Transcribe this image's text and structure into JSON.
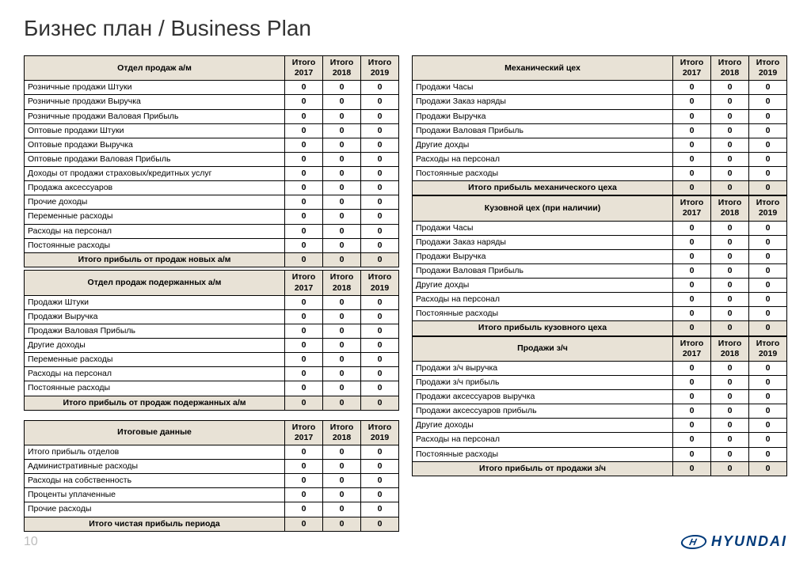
{
  "title": "Бизнес план / Business Plan",
  "page_number": "10",
  "logo_text": "HYUNDAI",
  "year_headers": [
    "Итого 2017",
    "Итого 2018",
    "Итого 2019"
  ],
  "colors": {
    "header_bg": "#e8e2d6",
    "border": "#000000",
    "text": "#000000",
    "title": "#333333",
    "page_num": "#bdbdbd",
    "logo": "#003a7a",
    "background": "#ffffff"
  },
  "tables": {
    "t1": {
      "title": "Отдел продаж а/м",
      "rows": [
        {
          "label": "Розничные продажи Штуки",
          "v": [
            "0",
            "0",
            "0"
          ]
        },
        {
          "label": "Розничные продажи Выручка",
          "v": [
            "0",
            "0",
            "0"
          ]
        },
        {
          "label": "Розничные продажи Валовая Прибыль",
          "v": [
            "0",
            "0",
            "0"
          ]
        },
        {
          "label": "Оптовые продажи Штуки",
          "v": [
            "0",
            "0",
            "0"
          ]
        },
        {
          "label": "Оптовые продажи Выручка",
          "v": [
            "0",
            "0",
            "0"
          ]
        },
        {
          "label": "Оптовые продажи Валовая Прибыль",
          "v": [
            "0",
            "0",
            "0"
          ]
        },
        {
          "label": "Доходы от продажи страховых/кредитных услуг",
          "v": [
            "0",
            "0",
            "0"
          ]
        },
        {
          "label": "Продажа аксессуаров",
          "v": [
            "0",
            "0",
            "0"
          ]
        },
        {
          "label": "Прочие доходы",
          "v": [
            "0",
            "0",
            "0"
          ]
        },
        {
          "label": "Переменные расходы",
          "v": [
            "0",
            "0",
            "0"
          ]
        },
        {
          "label": "Расходы на персонал",
          "v": [
            "0",
            "0",
            "0"
          ]
        },
        {
          "label": "Постоянные расходы",
          "v": [
            "0",
            "0",
            "0"
          ]
        }
      ],
      "total": {
        "label": "Итого прибыль от продаж новых а/м",
        "v": [
          "0",
          "0",
          "0"
        ]
      }
    },
    "t2": {
      "title": "Отдел продаж подержанных а/м",
      "rows": [
        {
          "label": "Продажи Штуки",
          "v": [
            "0",
            "0",
            "0"
          ]
        },
        {
          "label": "Продажи Выручка",
          "v": [
            "0",
            "0",
            "0"
          ]
        },
        {
          "label": "Продажи Валовая Прибыль",
          "v": [
            "0",
            "0",
            "0"
          ]
        },
        {
          "label": "Другие доходы",
          "v": [
            "0",
            "0",
            "0"
          ]
        },
        {
          "label": "Переменные расходы",
          "v": [
            "0",
            "0",
            "0"
          ]
        },
        {
          "label": "Расходы на персонал",
          "v": [
            "0",
            "0",
            "0"
          ]
        },
        {
          "label": "Постоянные расходы",
          "v": [
            "0",
            "0",
            "0"
          ]
        }
      ],
      "total": {
        "label": "Итого прибыль от продаж подержанных а/м",
        "v": [
          "0",
          "0",
          "0"
        ]
      }
    },
    "t3": {
      "title": "Итоговые данные",
      "rows": [
        {
          "label": "Итого прибыль отделов",
          "v": [
            "0",
            "0",
            "0"
          ]
        },
        {
          "label": "Административные расходы",
          "v": [
            "0",
            "0",
            "0"
          ]
        },
        {
          "label": "Расходы на собственность",
          "v": [
            "0",
            "0",
            "0"
          ]
        },
        {
          "label": "Проценты уплаченные",
          "v": [
            "0",
            "0",
            "0"
          ]
        },
        {
          "label": "Прочие расходы",
          "v": [
            "0",
            "0",
            "0"
          ]
        }
      ],
      "total": {
        "label": "Итого чистая прибыль периода",
        "v": [
          "0",
          "0",
          "0"
        ]
      }
    },
    "t4": {
      "title": "Механический цех",
      "rows": [
        {
          "label": "Продажи Часы",
          "v": [
            "0",
            "0",
            "0"
          ]
        },
        {
          "label": "Продажи Заказ наряды",
          "v": [
            "0",
            "0",
            "0"
          ]
        },
        {
          "label": "Продажи Выручка",
          "v": [
            "0",
            "0",
            "0"
          ]
        },
        {
          "label": "Продажи Валовая Прибыль",
          "v": [
            "0",
            "0",
            "0"
          ]
        },
        {
          "label": "Другие дохды",
          "v": [
            "0",
            "0",
            "0"
          ]
        },
        {
          "label": "Расходы на персонал",
          "v": [
            "0",
            "0",
            "0"
          ]
        },
        {
          "label": "Постоянные расходы",
          "v": [
            "0",
            "0",
            "0"
          ]
        }
      ],
      "total": {
        "label": "Итого прибыль механического цеха",
        "v": [
          "0",
          "0",
          "0"
        ]
      }
    },
    "t5": {
      "title": "Кузовной цех (при наличии)",
      "rows": [
        {
          "label": "Продажи Часы",
          "v": [
            "0",
            "0",
            "0"
          ]
        },
        {
          "label": "Продажи Заказ наряды",
          "v": [
            "0",
            "0",
            "0"
          ]
        },
        {
          "label": "Продажи Выручка",
          "v": [
            "0",
            "0",
            "0"
          ]
        },
        {
          "label": "Продажи Валовая Прибыль",
          "v": [
            "0",
            "0",
            "0"
          ]
        },
        {
          "label": "Другие дохды",
          "v": [
            "0",
            "0",
            "0"
          ]
        },
        {
          "label": "Расходы на персонал",
          "v": [
            "0",
            "0",
            "0"
          ]
        },
        {
          "label": "Постоянные расходы",
          "v": [
            "0",
            "0",
            "0"
          ]
        }
      ],
      "total": {
        "label": "Итого прибыль кузовного цеха",
        "v": [
          "0",
          "0",
          "0"
        ]
      }
    },
    "t6": {
      "title": "Продажи з/ч",
      "rows": [
        {
          "label": "Продажи з/ч выручка",
          "v": [
            "0",
            "0",
            "0"
          ]
        },
        {
          "label": "Продажи з/ч прибыль",
          "v": [
            "0",
            "0",
            "0"
          ]
        },
        {
          "label": "Продажи аксессуаров выручка",
          "v": [
            "0",
            "0",
            "0"
          ]
        },
        {
          "label": "Продажи аксессуаров прибыль",
          "v": [
            "0",
            "0",
            "0"
          ]
        },
        {
          "label": "Другие доходы",
          "v": [
            "0",
            "0",
            "0"
          ]
        },
        {
          "label": "Расходы на персонал",
          "v": [
            "0",
            "0",
            "0"
          ]
        },
        {
          "label": "Постоянные расходы",
          "v": [
            "0",
            "0",
            "0"
          ]
        }
      ],
      "total": {
        "label": "Итого прибыль от продажи з/ч",
        "v": [
          "0",
          "0",
          "0"
        ]
      }
    }
  }
}
